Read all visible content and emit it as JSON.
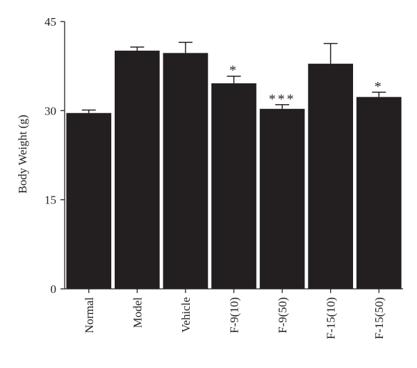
{
  "chart_data": {
    "type": "bar",
    "y_label": "Body Weight (g)",
    "categories": [
      "Normal",
      "Model",
      "Vehicle",
      "F-9(10)",
      "F-9(50)",
      "F-15(10)",
      "F-15(50)"
    ],
    "values": [
      29.6,
      40.1,
      39.7,
      34.6,
      30.3,
      37.9,
      32.3
    ],
    "errors": [
      0.5,
      0.6,
      1.8,
      1.2,
      0.7,
      3.4,
      0.8
    ],
    "annotations": [
      null,
      null,
      null,
      "*",
      "***",
      null,
      "*"
    ],
    "color": "#231f20",
    "ylim": [
      0,
      45
    ],
    "yticks": [
      0,
      15,
      30,
      45
    ],
    "grid": false
  }
}
